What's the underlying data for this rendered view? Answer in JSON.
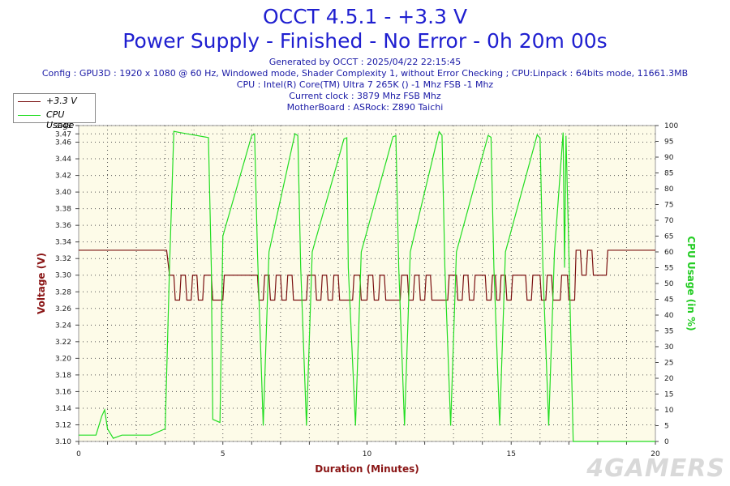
{
  "header": {
    "title": "OCCT 4.5.1 - +3.3 V",
    "subtitle": "Power Supply - Finished - No Error - 0h 20m 00s",
    "info": [
      "Generated by OCCT : 2025/04/22 22:15:45",
      "Config : GPU3D : 1920 x 1080 @ 60 Hz, Windowed mode, Shader Complexity 1, without Error Checking ; CPU:Linpack : 64bits mode, 11661.3MB",
      "CPU : Intel(R) Core(TM) Ultra 7 265K () -1 Mhz FSB -1 Mhz",
      "Current clock : 3879 Mhz FSB  Mhz",
      "MotherBoard : ASRock: Z890 Taichi"
    ]
  },
  "watermark": "4GAMERS",
  "colors": {
    "voltage": "#7a1010",
    "cpu": "#22dd22",
    "title": "#1f1fd0",
    "plot_bg": "#fdfbe8"
  },
  "chart_data": {
    "type": "line",
    "title": "OCCT 4.5.1 - +3.3 V",
    "xlabel": "Duration (Minutes)",
    "ylabel": "Voltage (V)",
    "y2label": "CPU Usage (in %)",
    "xlim": [
      0,
      20
    ],
    "ylim": [
      3.1,
      3.48
    ],
    "y2lim": [
      0,
      100
    ],
    "x_ticks": [
      0,
      5,
      10,
      15,
      20
    ],
    "y_ticks": [
      "3.10",
      "3.12",
      "3.14",
      "3.16",
      "3.18",
      "3.20",
      "3.22",
      "3.24",
      "3.26",
      "3.28",
      "3.30",
      "3.32",
      "3.34",
      "3.36",
      "3.38",
      "3.40",
      "3.42",
      "3.44",
      "3.46",
      "3.47",
      "3.48"
    ],
    "y2_ticks": [
      0,
      5,
      10,
      15,
      20,
      25,
      30,
      35,
      40,
      45,
      50,
      55,
      60,
      65,
      70,
      75,
      80,
      85,
      90,
      95,
      100
    ],
    "grid": true,
    "legend": "top-left",
    "series": [
      {
        "name": "+3.3 V",
        "axis": "left",
        "x": [
          0,
          3.05,
          3.15,
          3.3,
          3.35,
          3.5,
          3.55,
          3.7,
          3.75,
          3.9,
          3.95,
          4.1,
          4.15,
          4.3,
          4.35,
          4.6,
          4.65,
          5.0,
          5.05,
          6.2,
          6.25,
          6.4,
          6.45,
          6.6,
          6.65,
          6.8,
          6.85,
          7.0,
          7.05,
          7.2,
          7.25,
          7.4,
          7.45,
          7.9,
          7.95,
          8.2,
          8.25,
          8.4,
          8.45,
          8.6,
          8.65,
          8.8,
          8.85,
          9.0,
          9.05,
          9.5,
          9.55,
          9.75,
          9.8,
          10.0,
          10.05,
          10.2,
          10.25,
          10.4,
          10.45,
          10.6,
          10.65,
          11.15,
          11.2,
          11.4,
          11.45,
          11.6,
          11.65,
          11.8,
          11.85,
          12.0,
          12.05,
          12.2,
          12.25,
          12.8,
          12.85,
          13.1,
          13.15,
          13.3,
          13.35,
          13.5,
          13.55,
          13.7,
          13.75,
          14.1,
          14.15,
          14.3,
          14.35,
          14.45,
          14.5,
          14.6,
          14.65,
          14.8,
          14.85,
          15.0,
          15.05,
          15.5,
          15.55,
          15.7,
          15.75,
          16.0,
          16.05,
          16.2,
          16.25,
          16.4,
          16.45,
          16.7,
          16.75,
          16.95,
          17.0,
          17.2,
          17.25,
          17.4,
          17.45,
          17.6,
          17.65,
          17.8,
          17.85,
          18.3,
          18.35,
          20
        ],
        "values": [
          3.33,
          3.33,
          3.3,
          3.3,
          3.27,
          3.27,
          3.3,
          3.3,
          3.27,
          3.27,
          3.3,
          3.3,
          3.27,
          3.27,
          3.3,
          3.3,
          3.27,
          3.27,
          3.3,
          3.3,
          3.27,
          3.27,
          3.3,
          3.3,
          3.27,
          3.27,
          3.3,
          3.3,
          3.27,
          3.27,
          3.3,
          3.3,
          3.27,
          3.27,
          3.3,
          3.3,
          3.27,
          3.27,
          3.3,
          3.3,
          3.27,
          3.27,
          3.3,
          3.3,
          3.27,
          3.27,
          3.3,
          3.3,
          3.27,
          3.27,
          3.3,
          3.3,
          3.27,
          3.27,
          3.3,
          3.3,
          3.27,
          3.27,
          3.3,
          3.3,
          3.27,
          3.27,
          3.3,
          3.3,
          3.27,
          3.27,
          3.3,
          3.3,
          3.27,
          3.27,
          3.3,
          3.3,
          3.27,
          3.27,
          3.3,
          3.3,
          3.27,
          3.27,
          3.3,
          3.3,
          3.27,
          3.27,
          3.3,
          3.3,
          3.27,
          3.27,
          3.3,
          3.3,
          3.27,
          3.27,
          3.3,
          3.3,
          3.27,
          3.27,
          3.3,
          3.3,
          3.27,
          3.27,
          3.3,
          3.3,
          3.27,
          3.27,
          3.3,
          3.3,
          3.27,
          3.27,
          3.33,
          3.33,
          3.3,
          3.3,
          3.33,
          3.33,
          3.3,
          3.3,
          3.33,
          3.33
        ]
      },
      {
        "name": "CPU Usage",
        "axis": "right",
        "x": [
          0,
          0.6,
          0.8,
          0.9,
          1.0,
          1.2,
          1.5,
          2.5,
          3.0,
          3.15,
          3.3,
          3.5,
          4.5,
          4.6,
          4.65,
          4.9,
          5.0,
          6.0,
          6.1,
          6.2,
          6.4,
          6.6,
          7.5,
          7.6,
          7.7,
          7.9,
          8.1,
          9.2,
          9.3,
          9.35,
          9.6,
          9.8,
          10.9,
          11.0,
          11.1,
          11.3,
          11.5,
          12.5,
          12.6,
          12.7,
          12.9,
          13.1,
          14.2,
          14.3,
          14.4,
          14.6,
          14.8,
          15.9,
          16.0,
          16.1,
          16.3,
          16.5,
          16.8,
          16.85,
          16.9,
          17.0,
          17.15,
          20
        ],
        "values": [
          2,
          2,
          8,
          10,
          4,
          1,
          2,
          2,
          4,
          55,
          97,
          97,
          97,
          55,
          7,
          6,
          65,
          97,
          97,
          60,
          5,
          60,
          97,
          97,
          55,
          5,
          60,
          97,
          97,
          55,
          5,
          60,
          97,
          97,
          55,
          5,
          60,
          97,
          97,
          55,
          5,
          60,
          97,
          97,
          55,
          5,
          60,
          97,
          97,
          55,
          5,
          60,
          97,
          55,
          97,
          60,
          0,
          0
        ]
      }
    ]
  }
}
